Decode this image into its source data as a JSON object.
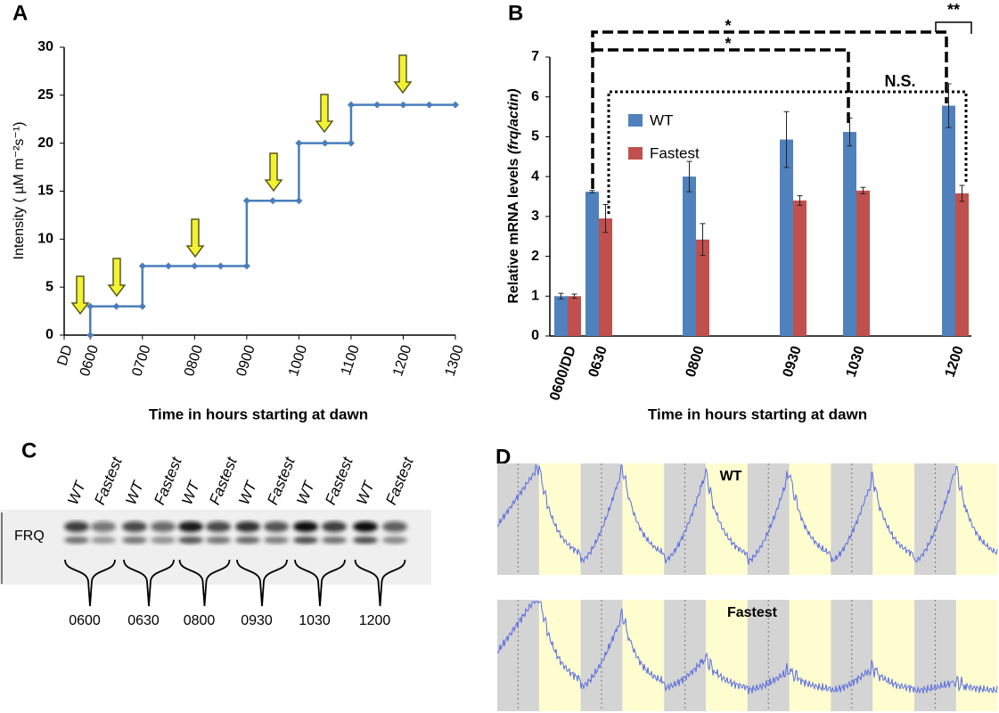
{
  "chart_data": [
    {
      "type": "line",
      "panel_label": "A",
      "y_label": "Intensity ( µM m⁻²s⁻¹)",
      "x_label": "Time in hours starting at dawn",
      "x": [
        6,
        6,
        6.5,
        7,
        7,
        7.5,
        8,
        8.5,
        9,
        9,
        9.5,
        10,
        10,
        10.5,
        11,
        11,
        11.5,
        12,
        12.5,
        13
      ],
      "values": [
        0,
        3,
        3,
        3,
        7.2,
        7.2,
        7.2,
        7.2,
        7.2,
        14,
        14,
        14,
        20,
        20,
        20,
        24,
        24,
        24,
        24,
        24
      ],
      "color": "#4a7ebb",
      "xlim": [
        5.5,
        13
      ],
      "ylim": [
        0,
        30
      ],
      "xticks": [
        {
          "value": 5.5,
          "label": "DD"
        },
        {
          "value": 6,
          "label": "0600"
        },
        {
          "value": 7,
          "label": "0700"
        },
        {
          "value": 8,
          "label": "0800"
        },
        {
          "value": 9,
          "label": "0900"
        },
        {
          "value": 10,
          "label": "1000"
        },
        {
          "value": 11,
          "label": "1100"
        },
        {
          "value": 12,
          "label": "1200"
        },
        {
          "value": 13,
          "label": "1300"
        }
      ],
      "yticks": [
        0,
        5,
        10,
        15,
        20,
        25,
        30
      ],
      "grid": false
    },
    {
      "type": "bar",
      "panel_label": "B",
      "y_label": [
        "Relative mRNA levels ",
        "(frq/actin)"
      ],
      "x_label": "Time in hours starting at dawn",
      "categories": [
        "0600/DD",
        "0630",
        "0800",
        "0930",
        "1030",
        "1200"
      ],
      "series": [
        {
          "name": "WT",
          "color": "#4f81bd",
          "values": [
            1.0,
            3.62,
            4.0,
            4.93,
            5.12,
            5.78
          ],
          "errors": [
            0.07,
            0.03,
            0.38,
            0.7,
            0.35,
            0.55
          ]
        },
        {
          "name": "Fastest",
          "color": "#c0504d",
          "values": [
            1.0,
            2.95,
            2.42,
            3.4,
            3.65,
            3.58
          ],
          "errors": [
            0.05,
            0.35,
            0.4,
            0.12,
            0.08,
            0.2
          ]
        }
      ],
      "ylim": [
        0,
        7
      ],
      "yticks": [
        0,
        1,
        2,
        3,
        4,
        5,
        6,
        7
      ],
      "grid": false,
      "legend": "upper left",
      "annotations": [
        "*",
        "*",
        "**",
        "N.S."
      ]
    }
  ],
  "panel_c": {
    "label": "C",
    "protein": "FRQ",
    "lanes": [
      "WT",
      "Fastest",
      "WT",
      "Fastest",
      "WT",
      "Fastest",
      "WT",
      "Fastest",
      "WT",
      "Fastest",
      "WT",
      "Fastest"
    ],
    "timepoints": [
      "0600",
      "0630",
      "0800",
      "0930",
      "1030",
      "1200"
    ]
  },
  "panel_d": {
    "label": "D",
    "tracks": [
      "WT",
      "Fastest"
    ]
  }
}
